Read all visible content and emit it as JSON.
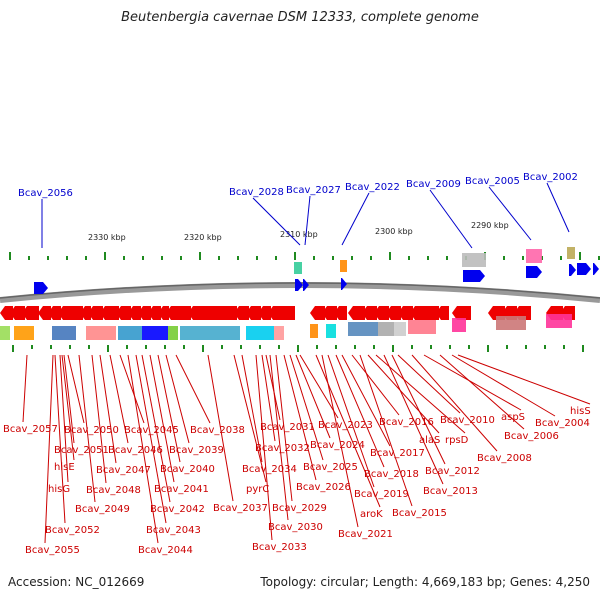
{
  "title": "Beutenbergia cavernae DSM 12333, complete genome",
  "footer": {
    "accession": "Accession: NC_012669",
    "topology": "Topology: circular; Length: 4,669,183 bp; Genes: 4,250"
  },
  "scale_labels": [
    "2330 kbp",
    "2320 kbp",
    "2310 kbp",
    "2300 kbp",
    "2290 kbp"
  ],
  "top_genes": [
    "Bcav_2056",
    "Bcav_2028",
    "Bcav_2027",
    "Bcav_2022",
    "Bcav_2009",
    "Bcav_2005",
    "Bcav_2002"
  ],
  "bottom_genes": [
    "Bcav_2057",
    "hisE",
    "hisG",
    "Bcav_2055",
    "Bcav_2052",
    "Bcav_2051",
    "Bcav_2050",
    "Bcav_2049",
    "Bcav_2048",
    "Bcav_2047",
    "Bcav_2046",
    "Bcav_2045",
    "Bcav_2044",
    "Bcav_2043",
    "Bcav_2042",
    "Bcav_2041",
    "Bcav_2040",
    "Bcav_2039",
    "Bcav_2038",
    "Bcav_2037",
    "pyrC",
    "Bcav_2034",
    "Bcav_2033",
    "Bcav_2032",
    "Bcav_2031",
    "Bcav_2030",
    "Bcav_2029",
    "Bcav_2026",
    "Bcav_2025",
    "Bcav_2024",
    "Bcav_2023",
    "aroK",
    "Bcav_2021",
    "Bcav_2019",
    "Bcav_2018",
    "Bcav_2017",
    "Bcav_2016",
    "Bcav_2015",
    "alaS",
    "rpsD",
    "Bcav_2013",
    "Bcav_2012",
    "Bcav_2010",
    "Bcav_2008",
    "aspS",
    "Bcav_2006",
    "Bcav_2004",
    "hisS"
  ],
  "colors": {
    "forward_gene": "#0000ee",
    "reverse_gene": "#ee0000",
    "tick": "#1f8a1f",
    "backbone": "#888888"
  }
}
